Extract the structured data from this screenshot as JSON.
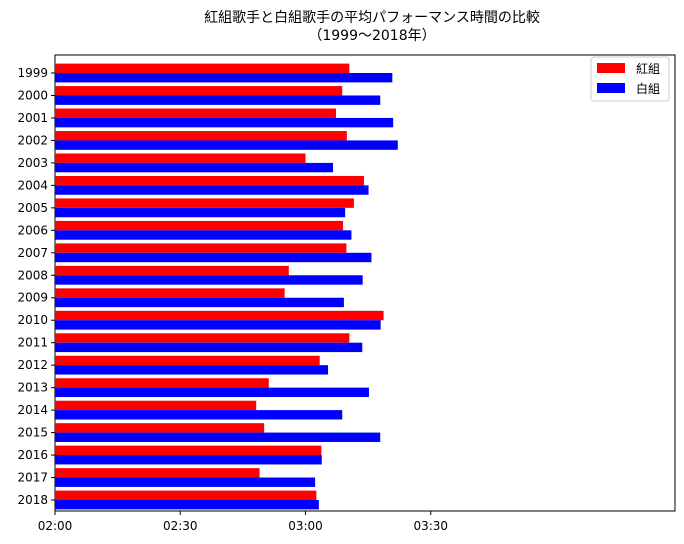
{
  "chart_data": {
    "type": "bar",
    "orientation": "horizontal",
    "title": "紅組歌手と白組歌手の平均パフォーマンス時間の比較",
    "subtitle": "（1999〜2018年）",
    "xlabel": "",
    "ylabel": "",
    "categories": [
      "1999",
      "2000",
      "2001",
      "2002",
      "2003",
      "2004",
      "2005",
      "2006",
      "2007",
      "2008",
      "2009",
      "2010",
      "2011",
      "2012",
      "2013",
      "2014",
      "2015",
      "2016",
      "2017",
      "2018"
    ],
    "value_unit": "seconds",
    "xlim": [
      120,
      270
    ],
    "xticks": [
      {
        "value": 120,
        "label": "02:00"
      },
      {
        "value": 150,
        "label": "02:30"
      },
      {
        "value": 180,
        "label": "03:00"
      },
      {
        "value": 210,
        "label": "03:30"
      }
    ],
    "series": [
      {
        "name": "紅組",
        "color": "#ff0000",
        "values": [
          190.5,
          188.8,
          187.3,
          189.9,
          180.0,
          194.0,
          191.6,
          189.0,
          189.8,
          176.0,
          175.0,
          198.7,
          190.5,
          183.4,
          171.2,
          168.2,
          170.1,
          183.8,
          169.0,
          182.6
        ]
      },
      {
        "name": "白組",
        "color": "#0000ff",
        "values": [
          200.8,
          197.9,
          201.0,
          202.1,
          186.6,
          195.1,
          189.5,
          191.0,
          195.8,
          193.7,
          189.2,
          198.0,
          193.6,
          185.4,
          195.2,
          188.8,
          197.9,
          183.9,
          182.3,
          183.2
        ]
      }
    ],
    "legend_position": "top-right",
    "grid": false
  }
}
